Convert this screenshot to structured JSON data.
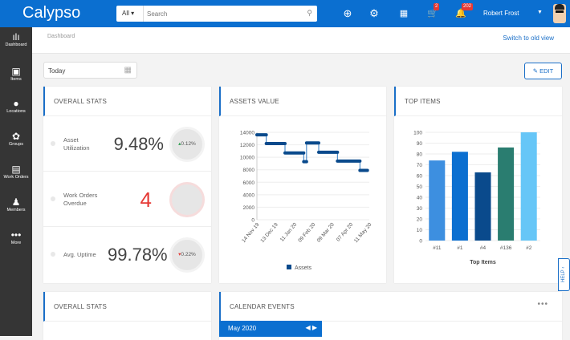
{
  "header": {
    "logo": "Calypso",
    "search_scope": "All",
    "search_placeholder": "Search",
    "cart_badge": "2",
    "notif_badge": "202",
    "user_name": "Robert Frost"
  },
  "sidebar": {
    "items": [
      {
        "label": "Dashboard",
        "icon": "chart-icon"
      },
      {
        "label": "Items",
        "icon": "gift-icon"
      },
      {
        "label": "Locations",
        "icon": "pin-icon"
      },
      {
        "label": "Groups",
        "icon": "gear-flower-icon"
      },
      {
        "label": "Work Orders",
        "icon": "document-icon"
      },
      {
        "label": "Members",
        "icon": "people-icon"
      },
      {
        "label": "More",
        "icon": "dots-icon"
      }
    ]
  },
  "breadcrumb": "Dashboard",
  "switch_link": "Switch to old view",
  "date_filter": "Today",
  "edit_label": "EDIT",
  "overall_stats": {
    "title": "OVERALL STATS",
    "rows": [
      {
        "label": "Asset Utilization",
        "value": "9.48%",
        "change": "0.12%",
        "trend": "up",
        "trend_color": "#2e9e4f"
      },
      {
        "label": "Work Orders Overdue",
        "value": "4",
        "value_color": "#e53935"
      },
      {
        "label": "Avg. Uptime",
        "value": "99.78%",
        "change": "0.22%",
        "trend": "down",
        "trend_color": "#e53935"
      }
    ]
  },
  "overall_stats_2": {
    "title": "OVERALL STATS"
  },
  "calendar": {
    "title": "CALENDAR EVENTS",
    "month": "May 2020"
  },
  "help_label": "HELP",
  "chart_data": [
    {
      "type": "line",
      "title": "ASSETS VALUE",
      "step": true,
      "x": [
        "14 Nov 19",
        "13 Dec 19",
        "11 Jan 20",
        "09 Feb 20",
        "09 Mar 20",
        "07 Apr 20",
        "11 May 20"
      ],
      "series": [
        {
          "name": "Assets",
          "color": "#0a4a8c",
          "points": [
            [
              0,
              13600
            ],
            [
              0.5,
              13600
            ],
            [
              0.5,
              12200
            ],
            [
              1.5,
              12200
            ],
            [
              1.5,
              10700
            ],
            [
              2.5,
              10700
            ],
            [
              2.5,
              9300
            ],
            [
              2.65,
              9300
            ],
            [
              2.65,
              12300
            ],
            [
              3.3,
              12300
            ],
            [
              3.3,
              10800
            ],
            [
              4.3,
              10800
            ],
            [
              4.3,
              9400
            ],
            [
              5.5,
              9400
            ],
            [
              5.5,
              7900
            ],
            [
              5.9,
              7900
            ]
          ]
        }
      ],
      "ylim": [
        0,
        14000
      ],
      "yticks": [
        0,
        2000,
        4000,
        6000,
        8000,
        10000,
        12000,
        14000
      ],
      "legend": "bottom"
    },
    {
      "type": "bar",
      "title": "TOP ITEMS",
      "xlabel": "Top Items",
      "categories": [
        "#11",
        "#1",
        "#4",
        "#136",
        "#2"
      ],
      "values": [
        74,
        82,
        63,
        86,
        100
      ],
      "colors": [
        "#3d8fe0",
        "#0b6fd0",
        "#0a4a8c",
        "#2a7d70",
        "#66c6f7"
      ],
      "ylim": [
        0,
        100
      ],
      "yticks": [
        0,
        10,
        20,
        30,
        40,
        50,
        60,
        70,
        80,
        90,
        100
      ]
    }
  ]
}
